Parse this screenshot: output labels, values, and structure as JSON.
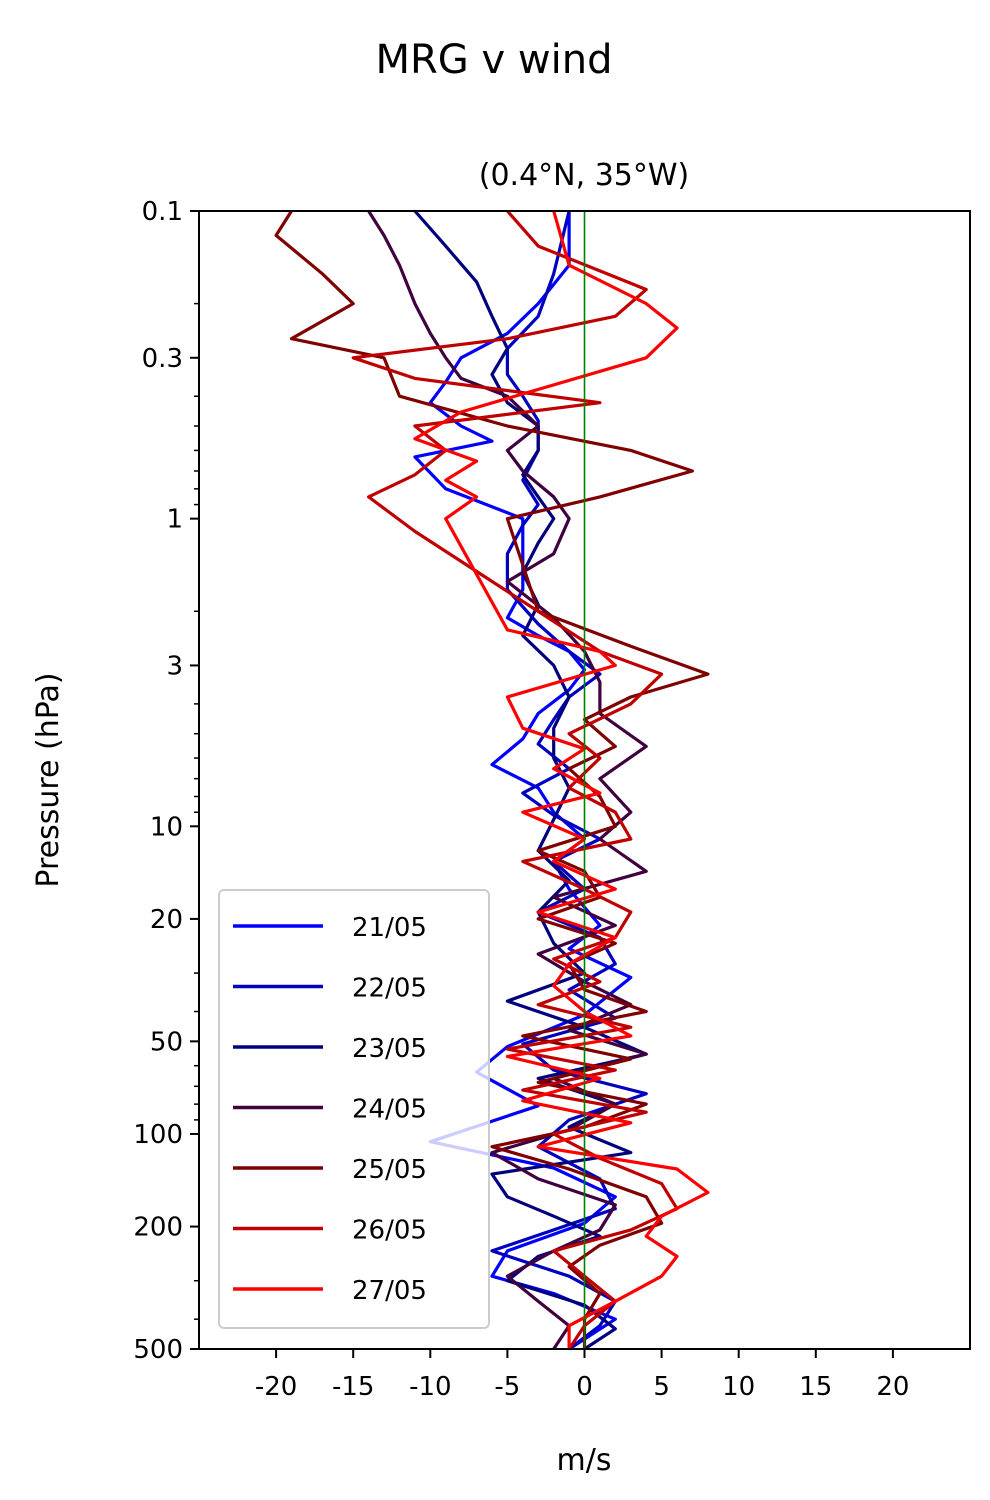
{
  "figure": {
    "suptitle": "MRG v wind"
  },
  "chart_data": {
    "type": "line",
    "orientation": "vertical-profile",
    "title": "(0.4°N, 35°W)",
    "xlabel": "m/s",
    "ylabel": "Pressure (hPa)",
    "xlim": [
      -25,
      25
    ],
    "ylim": [
      500,
      0.1
    ],
    "yscale": "log",
    "xticks": [
      -20,
      -15,
      -10,
      -5,
      0,
      5,
      10,
      15,
      20
    ],
    "xtick_labels": [
      "-20",
      "-15",
      "-10",
      "-5",
      "0",
      "5",
      "10",
      "15",
      "20"
    ],
    "yticks": [
      0.1,
      0.3,
      1,
      3,
      10,
      20,
      50,
      100,
      200,
      500
    ],
    "ytick_labels": [
      "0.1",
      "0.3",
      "1",
      "3",
      "10",
      "20",
      "50",
      "100",
      "200",
      "500"
    ],
    "grid": false,
    "legend_position": "lower-left",
    "reference_line": {
      "x": 0,
      "color": "#008000"
    },
    "series": [
      {
        "name": "21/05",
        "color": "#0000ff",
        "x": [
          -1,
          -1,
          -3,
          -5,
          -8,
          -9,
          -10,
          -8,
          -6,
          -11,
          -9,
          -4,
          -4,
          -4,
          -5,
          -3,
          -1,
          0,
          -1,
          -3,
          -4,
          -6,
          -3,
          -2,
          0,
          -2,
          -1,
          1,
          -1,
          3,
          0,
          -5,
          -7,
          -3,
          -10,
          -2,
          2,
          0,
          -5,
          -6,
          -2,
          2,
          -1
        ],
        "p": [
          0.1,
          0.15,
          0.2,
          0.25,
          0.3,
          0.36,
          0.42,
          0.5,
          0.56,
          0.63,
          0.8,
          1.0,
          1.3,
          1.7,
          2.1,
          2.4,
          2.7,
          3.1,
          3.6,
          4.3,
          5.2,
          6.3,
          7.5,
          9.0,
          11,
          13,
          16,
          21,
          25,
          31,
          41,
          52,
          63,
          81,
          106,
          129,
          160,
          195,
          240,
          290,
          330,
          400,
          500
        ]
      },
      {
        "name": "22/05",
        "color": "#0000bf",
        "x": [
          -1,
          -2,
          -3,
          -5,
          -5,
          -4,
          -3,
          -3,
          -4,
          -3,
          -4,
          -5,
          -5,
          -3,
          -1,
          1,
          -1,
          -2,
          -3,
          -1,
          -4,
          -2,
          1,
          -2,
          0,
          -3,
          1,
          2,
          -1,
          2,
          -4,
          -2,
          4,
          -1,
          -3,
          1,
          2,
          -2,
          -6,
          -1,
          2,
          1,
          -1
        ],
        "p": [
          0.1,
          0.16,
          0.22,
          0.28,
          0.34,
          0.4,
          0.48,
          0.6,
          0.75,
          0.9,
          1.05,
          1.3,
          1.7,
          2.2,
          2.7,
          3.2,
          3.8,
          4.5,
          5.4,
          6.5,
          7.8,
          9.2,
          11,
          13,
          16,
          19,
          23,
          28,
          34,
          42,
          51,
          62,
          74,
          90,
          110,
          140,
          175,
          205,
          240,
          290,
          350,
          420,
          500
        ]
      },
      {
        "name": "23/05",
        "color": "#00007f",
        "x": [
          -11,
          -9,
          -7,
          -6,
          -5,
          -6,
          -5,
          -3,
          -3,
          -4,
          -3,
          -2,
          -3,
          -4,
          -3,
          -4,
          -2,
          -1,
          -2,
          -2,
          -1,
          -2,
          -3,
          -1,
          -3,
          -2,
          0,
          -5,
          0,
          4,
          -3,
          2,
          -1,
          3,
          -6,
          -5,
          -2,
          1,
          -3,
          -5,
          0,
          2,
          0
        ],
        "p": [
          0.1,
          0.13,
          0.17,
          0.22,
          0.28,
          0.34,
          0.42,
          0.5,
          0.6,
          0.72,
          0.85,
          1.0,
          1.2,
          1.5,
          1.9,
          2.4,
          3.0,
          3.8,
          4.8,
          6.0,
          7.5,
          9.5,
          12,
          15,
          19,
          24,
          30,
          37,
          45,
          55,
          66,
          80,
          95,
          115,
          135,
          160,
          185,
          215,
          250,
          300,
          360,
          430,
          500
        ]
      },
      {
        "name": "24/05",
        "color": "#400040",
        "x": [
          -14,
          -13,
          -12,
          -11,
          -10,
          -9,
          -8,
          -5,
          -3,
          -5,
          -4,
          -2,
          -1,
          -2,
          -5,
          -2,
          0,
          1,
          1,
          4,
          1,
          3,
          1,
          4,
          -2,
          2,
          -3,
          0,
          3,
          -1,
          4,
          -2,
          2,
          -1,
          -6,
          -3,
          2,
          1,
          -2,
          -5,
          -3,
          -1,
          -2
        ],
        "p": [
          0.1,
          0.12,
          0.15,
          0.2,
          0.25,
          0.3,
          0.35,
          0.4,
          0.5,
          0.6,
          0.7,
          0.85,
          1.0,
          1.3,
          1.6,
          2.1,
          2.7,
          3.4,
          4.3,
          5.5,
          7.0,
          9.0,
          11,
          14,
          17,
          21,
          26,
          32,
          38,
          46,
          55,
          66,
          80,
          97,
          115,
          140,
          170,
          205,
          240,
          290,
          350,
          420,
          500
        ]
      },
      {
        "name": "25/05",
        "color": "#800000",
        "x": [
          -19,
          -20,
          -17,
          -15,
          -19,
          -13,
          -12,
          -5,
          3,
          7,
          1,
          -5,
          -3,
          3,
          8,
          3,
          0,
          2,
          -1,
          1,
          2,
          -3,
          0,
          1,
          -3,
          2,
          -1,
          0,
          4,
          -4,
          3,
          -3,
          4,
          0,
          -6,
          -1,
          4,
          5,
          1,
          -1,
          1,
          0,
          0
        ],
        "p": [
          0.1,
          0.12,
          0.16,
          0.2,
          0.26,
          0.3,
          0.4,
          0.5,
          0.6,
          0.7,
          0.85,
          1.0,
          2.0,
          2.6,
          3.2,
          3.8,
          4.5,
          5.5,
          6.5,
          8.0,
          10,
          12,
          14,
          17,
          20,
          24,
          28,
          34,
          40,
          48,
          57,
          68,
          80,
          95,
          110,
          130,
          160,
          195,
          230,
          270,
          330,
          400,
          500
        ]
      },
      {
        "name": "26/05",
        "color": "#bf0000",
        "x": [
          -5,
          -3,
          4,
          2,
          -5,
          -15,
          -11,
          1,
          -11,
          -9,
          -11,
          -14,
          -11,
          1,
          5,
          3,
          -1,
          1,
          -1,
          2,
          3,
          -4,
          0,
          3,
          2,
          -2,
          1,
          -3,
          3,
          -5,
          2,
          -4,
          4,
          -2,
          1,
          5,
          6,
          3,
          -2,
          0,
          2,
          0,
          -1
        ],
        "p": [
          0.1,
          0.13,
          0.18,
          0.22,
          0.26,
          0.3,
          0.35,
          0.42,
          0.5,
          0.6,
          0.72,
          0.85,
          1.1,
          2.7,
          3.2,
          4.0,
          5.0,
          6.0,
          7.5,
          9.0,
          11,
          13,
          16,
          19,
          23,
          27,
          32,
          38,
          45,
          53,
          62,
          72,
          85,
          100,
          120,
          145,
          175,
          205,
          240,
          290,
          350,
          420,
          500
        ]
      },
      {
        "name": "27/05",
        "color": "#ff0000",
        "x": [
          -2,
          -1,
          4,
          6,
          4,
          -8,
          -11,
          -7,
          -9,
          -7,
          -9,
          -5,
          1,
          2,
          -5,
          -4,
          0,
          -2,
          1,
          -4,
          0,
          -2,
          2,
          -3,
          2,
          -1,
          -2,
          0,
          3,
          -5,
          1,
          -4,
          3,
          -3,
          6,
          8,
          5,
          4,
          6,
          5,
          2,
          -1,
          -1
        ],
        "p": [
          0.1,
          0.15,
          0.2,
          0.24,
          0.3,
          0.45,
          0.55,
          0.65,
          0.75,
          0.85,
          1.0,
          2.3,
          2.7,
          3.0,
          3.8,
          4.8,
          5.6,
          6.5,
          7.8,
          9.0,
          11,
          13,
          16,
          19,
          23,
          28,
          33,
          40,
          48,
          56,
          66,
          78,
          92,
          110,
          130,
          155,
          185,
          215,
          250,
          290,
          350,
          420,
          500
        ]
      }
    ]
  }
}
